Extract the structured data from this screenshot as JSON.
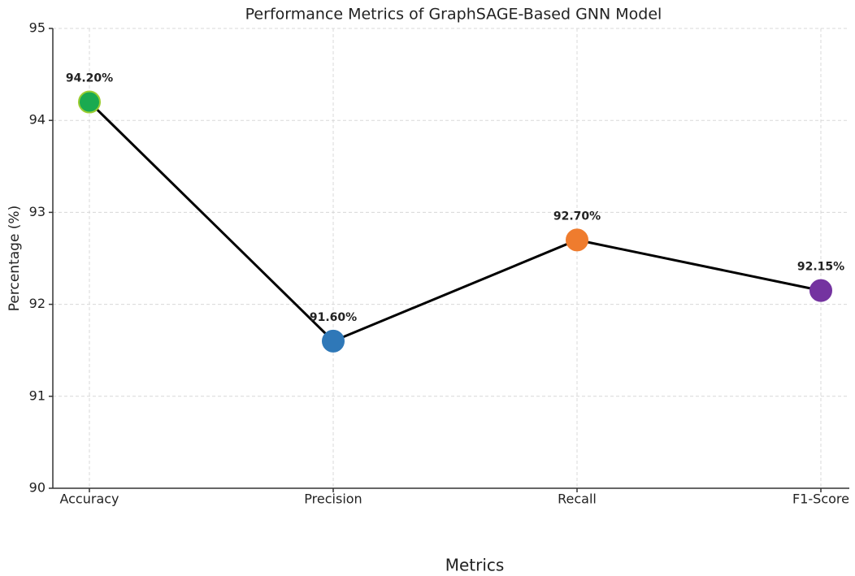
{
  "chart_data": {
    "type": "line",
    "title": "Performance Metrics of GraphSAGE-Based GNN Model",
    "x_label": "Metrics",
    "y_label": "Percentage (%)",
    "categories": [
      "Accuracy",
      "Precision",
      "Recall",
      "F1-Score"
    ],
    "series": [
      {
        "color": "#000000",
        "point_colors": [
          "#1aaa50",
          "#2f78b8",
          "#ef7c2e",
          "#7433a0"
        ],
        "values": [
          94.2,
          91.6,
          92.7,
          92.15
        ],
        "value_labels": [
          "94.20%",
          "91.60%",
          "92.70%",
          "92.15%"
        ]
      }
    ],
    "ylim": [
      90,
      95
    ],
    "yticks": [
      90,
      91,
      92,
      93,
      94,
      95
    ],
    "grid": true
  }
}
